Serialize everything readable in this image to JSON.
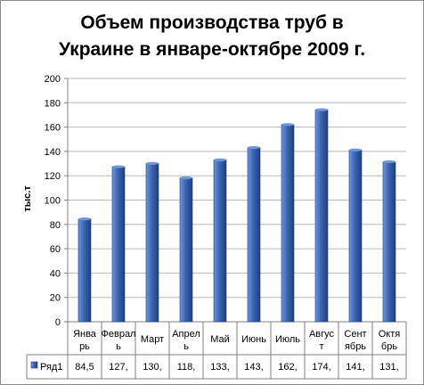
{
  "chart_data": {
    "type": "bar",
    "title_lines": [
      "Объем производства труб в",
      "Украине в январе-октябре 2009 г."
    ],
    "ylabel": "тыс.т",
    "xlabel": "",
    "ylim": [
      0,
      200
    ],
    "yticks": [
      0,
      20,
      40,
      60,
      80,
      100,
      120,
      140,
      160,
      180,
      200
    ],
    "grid": true,
    "legend": "bottom-left",
    "categories": [
      [
        "Янва",
        "рь"
      ],
      [
        "Феврал",
        "ь"
      ],
      [
        "Март"
      ],
      [
        "Апрел",
        "ь"
      ],
      [
        "Май"
      ],
      [
        "Июнь"
      ],
      [
        "Июль"
      ],
      [
        "Авгус",
        "т"
      ],
      [
        "Сент",
        "ябрь"
      ],
      [
        "Октя",
        "брь"
      ]
    ],
    "series": [
      {
        "name": "Ряд1",
        "values": [
          84.5,
          127.4,
          130.2,
          118.3,
          133.1,
          143.2,
          162.1,
          174.3,
          141.2,
          131.5
        ],
        "table_labels": [
          "84,5",
          "127,",
          "130,",
          "118,",
          "133,",
          "143,",
          "162,",
          "174,",
          "141,",
          "131,"
        ],
        "color": "#3a65b0"
      }
    ],
    "colors": {
      "bar_light": "#6f97dc",
      "bar_dark": "#1f3f80",
      "grid": "#b9b9b9",
      "axis": "#808080"
    }
  }
}
